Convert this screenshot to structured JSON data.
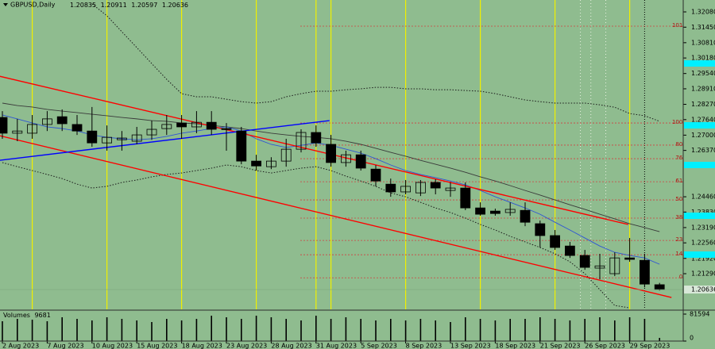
{
  "chart_data": {
    "type": "candlestick",
    "title": "GBPUSD,Daily",
    "categories": [
      "2 Aug 2023",
      null,
      null,
      "7 Aug 2023",
      null,
      null,
      "10 Aug 2023",
      null,
      null,
      "15 Aug 2023",
      null,
      null,
      "18 Aug 2023",
      null,
      null,
      "23 Aug 2023",
      null,
      null,
      "28 Aug 2023",
      null,
      null,
      "31 Aug 2023",
      null,
      null,
      "5 Sep 2023",
      null,
      null,
      "8 Sep 2023",
      null,
      null,
      "13 Sep 2023",
      null,
      null,
      "18 Sep 2023",
      null,
      null,
      "21 Sep 2023",
      null,
      null,
      "26 Sep 2023",
      null,
      null,
      "29 Sep 2023",
      null,
      null
    ],
    "open": [
      1.2773,
      1.2708,
      1.2708,
      1.2744,
      1.2776,
      1.2744,
      1.2717,
      1.2668,
      1.2681,
      1.2675,
      1.2701,
      1.2727,
      1.275,
      1.2734,
      1.2753,
      1.2727,
      1.2717,
      1.2593,
      1.257,
      1.2593,
      1.2642,
      1.2711,
      1.2662,
      1.2587,
      1.2619,
      1.256,
      1.2498,
      1.2466,
      1.2462,
      1.2505,
      1.2472,
      1.2482,
      1.24,
      1.2387,
      1.2381,
      1.239,
      1.2335,
      1.2286,
      1.2243,
      1.2204,
      1.2152,
      1.2129,
      1.2194,
      1.2184,
      1.20835
    ],
    "high": [
      1.2799,
      1.2767,
      1.2783,
      1.2799,
      1.2806,
      1.2783,
      1.2816,
      1.274,
      1.2717,
      1.2734,
      1.276,
      1.2783,
      1.2783,
      1.2799,
      1.2799,
      1.275,
      1.2734,
      1.2619,
      1.2609,
      1.2685,
      1.2724,
      1.274,
      1.2701,
      1.2636,
      1.2636,
      1.2576,
      1.2521,
      1.2515,
      1.2515,
      1.2518,
      1.2505,
      1.2505,
      1.2423,
      1.2397,
      1.2423,
      1.2423,
      1.2348,
      1.2309,
      1.226,
      1.2227,
      1.2211,
      1.2217,
      1.2276,
      1.2211,
      1.20911
    ],
    "low": [
      1.2685,
      1.2675,
      1.2685,
      1.2717,
      1.2717,
      1.2701,
      1.2652,
      1.2636,
      1.2636,
      1.2662,
      1.2681,
      1.2701,
      1.2685,
      1.2708,
      1.2701,
      1.2636,
      1.258,
      1.2554,
      1.256,
      1.257,
      1.2629,
      1.2652,
      1.257,
      1.257,
      1.2554,
      1.2489,
      1.2446,
      1.2456,
      1.2449,
      1.2456,
      1.2446,
      1.2391,
      1.2368,
      1.2368,
      1.2368,
      1.2325,
      1.2237,
      1.2227,
      1.2194,
      1.2145,
      1.2106,
      1.2119,
      1.2178,
      1.2073,
      1.20597
    ],
    "close": [
      1.2708,
      1.2717,
      1.2744,
      1.2767,
      1.2747,
      1.2717,
      1.2668,
      1.2691,
      1.2688,
      1.2701,
      1.2724,
      1.2744,
      1.2734,
      1.2753,
      1.2724,
      1.2723,
      1.2593,
      1.2573,
      1.2593,
      1.2642,
      1.2711,
      1.2668,
      1.2587,
      1.2619,
      1.2564,
      1.2511,
      1.2466,
      1.2489,
      1.2505,
      1.2482,
      1.2482,
      1.24,
      1.2374,
      1.2377,
      1.2394,
      1.2341,
      1.2286,
      1.2237,
      1.2204,
      1.2155,
      1.2161,
      1.2194,
      1.2188,
      1.2086,
      1.20636
    ],
    "ylim": [
      1.1982,
      1.3257
    ],
    "yticks": [
      {
        "value": 1.3208,
        "label": "1.32080"
      },
      {
        "value": 1.3145,
        "label": "1.31450"
      },
      {
        "value": 1.3081,
        "label": "1.30810"
      },
      {
        "value": 1.3018,
        "label": "1.30180"
      },
      {
        "value": 1.2954,
        "label": "1.29540"
      },
      {
        "value": 1.2891,
        "label": "1.28910"
      },
      {
        "value": 1.2827,
        "label": "1.28270"
      },
      {
        "value": 1.2764,
        "label": "1.27640"
      },
      {
        "value": 1.27,
        "label": "1.27000"
      },
      {
        "value": 1.2637,
        "label": "1.26370"
      },
      {
        "value": 1.2446,
        "label": "1.24460"
      },
      {
        "value": 1.2383,
        "label": "1.23830"
      },
      {
        "value": 1.2319,
        "label": "1.23190"
      },
      {
        "value": 1.2256,
        "label": "1.22560"
      },
      {
        "value": 1.2192,
        "label": "1.21920"
      },
      {
        "value": 1.2129,
        "label": "1.21290"
      }
    ],
    "grid": false,
    "up_color": "#ffffff",
    "down_color": "#000000",
    "lines": [
      {
        "color": "#1a1a1a",
        "style": "dotted",
        "values": [
          null,
          null,
          null,
          null,
          null,
          null,
          1.3241,
          1.3192,
          1.3126,
          1.3061,
          1.2995,
          1.293,
          1.2871,
          1.2858,
          1.2858,
          1.2848,
          1.2838,
          1.2832,
          1.2838,
          1.2858,
          1.2871,
          1.2881,
          1.2881,
          1.2887,
          1.2891,
          1.2897,
          1.2897,
          1.2891,
          1.2891,
          1.2887,
          1.2887,
          1.2884,
          1.2881,
          1.2871,
          1.2858,
          1.2845,
          1.2838,
          1.2832,
          1.2832,
          1.2832,
          1.2825,
          1.2815,
          1.2789,
          1.278,
          1.2757
        ]
      },
      {
        "color": "#1a1a1a",
        "style": "dotted",
        "values": [
          1.2587,
          1.257,
          1.2554,
          1.2538,
          1.2521,
          1.2498,
          1.2482,
          1.2489,
          1.2505,
          1.2515,
          1.2528,
          1.2538,
          1.2544,
          1.2554,
          1.2564,
          1.2577,
          1.257,
          1.2554,
          1.2544,
          1.2554,
          1.2564,
          1.257,
          1.2554,
          1.2531,
          1.2511,
          1.2489,
          1.2462,
          1.2446,
          1.2423,
          1.24,
          1.2381,
          1.2358,
          1.2332,
          1.2309,
          1.2283,
          1.226,
          1.2237,
          1.2211,
          1.2178,
          1.2129,
          1.2063,
          1.1998,
          1.1988,
          null,
          null
        ]
      },
      {
        "color": "#3a3a3a",
        "style": "solid",
        "values": [
          1.2832,
          1.2822,
          1.2816,
          1.2806,
          1.2799,
          1.2793,
          1.2786,
          1.278,
          1.2773,
          1.2767,
          1.276,
          1.2757,
          1.275,
          1.2747,
          1.274,
          1.2734,
          1.2727,
          1.2717,
          1.2708,
          1.2701,
          1.2695,
          1.2691,
          1.2685,
          1.2675,
          1.2662,
          1.2646,
          1.2629,
          1.2613,
          1.2596,
          1.258,
          1.2564,
          1.2547,
          1.2528,
          1.2511,
          1.2492,
          1.2472,
          1.2453,
          1.2433,
          1.2413,
          1.2394,
          1.2374,
          1.2355,
          1.2335,
          1.2319,
          1.2302
        ]
      },
      {
        "color": "#2f55d4",
        "style": "solid",
        "values": [
          1.2783,
          1.2767,
          1.275,
          1.2734,
          1.2727,
          1.2717,
          1.2701,
          1.2691,
          1.2685,
          1.2681,
          1.2685,
          1.2695,
          1.2708,
          1.2717,
          1.2727,
          1.2734,
          1.2717,
          1.2685,
          1.2662,
          1.2649,
          1.2658,
          1.2668,
          1.2658,
          1.2642,
          1.2626,
          1.2603,
          1.2577,
          1.2554,
          1.2538,
          1.2525,
          1.2511,
          1.2495,
          1.2472,
          1.2446,
          1.2423,
          1.24,
          1.2374,
          1.2341,
          1.2309,
          1.2276,
          1.2243,
          1.2217,
          1.2204,
          1.2194,
          1.2168
        ]
      }
    ],
    "trendlines": [
      {
        "color": "#ff0000",
        "x": [
          -0.2,
          41.9
        ],
        "y": [
          1.2943,
          1.2332
        ]
      },
      {
        "color": "#ff0000",
        "x": [
          -0.2,
          44.8
        ],
        "y": [
          1.2698,
          1.2031
        ]
      },
      {
        "color": "#0000ff",
        "x": [
          -0.2,
          21.9
        ],
        "y": [
          1.2596,
          1.276
        ]
      }
    ],
    "fib_levels": [
      {
        "label": "101.6",
        "value": 1.3149
      },
      {
        "label": "100.0",
        "value": 1.275
      },
      {
        "label": "80.4",
        "value": 1.2659
      },
      {
        "label": "76.4",
        "value": 1.2603
      },
      {
        "label": "61.8",
        "value": 1.2508
      },
      {
        "label": "50.0",
        "value": 1.2433
      },
      {
        "label": "38.2",
        "value": 1.2358
      },
      {
        "label": "23.6",
        "value": 1.2266
      },
      {
        "label": "14.6",
        "value": 1.2207
      },
      {
        "label": "0.0",
        "value": 1.2112
      }
    ],
    "volume": {
      "title": "Volumes",
      "color": "#000000",
      "values": [
        60000,
        67200,
        64800,
        60000,
        72000,
        67200,
        62400,
        72000,
        67200,
        62400,
        57600,
        67200,
        62400,
        67200,
        76800,
        72000,
        67200,
        76800,
        72000,
        67200,
        62400,
        76800,
        67200,
        72000,
        67200,
        62400,
        67200,
        62400,
        67200,
        62400,
        57600,
        72000,
        67200,
        62400,
        67200,
        67200,
        72000,
        67200,
        62400,
        67200,
        72000,
        62400,
        72000,
        67200,
        9681
      ],
      "ylim": [
        0,
        81594
      ],
      "yticks": [
        0,
        81594
      ]
    }
  }
}
